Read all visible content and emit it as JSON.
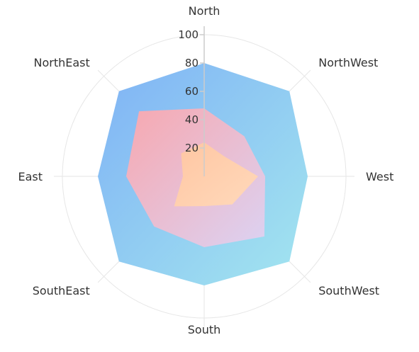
{
  "chart_data": {
    "type": "radar",
    "categories": [
      "North",
      "NorthWest",
      "West",
      "SouthWest",
      "South",
      "SouthEast",
      "East",
      "NorthEast"
    ],
    "rlim": [
      0,
      100
    ],
    "ticks": [
      "20",
      "40",
      "60",
      "80",
      "100"
    ],
    "grid": true,
    "series": [
      {
        "values": [
          80,
          85,
          73,
          85,
          77,
          85,
          75,
          85
        ],
        "colors": {
          "start": "#7fb2f5",
          "end": "#a3e6ef"
        }
      },
      {
        "values": [
          48,
          40,
          43,
          60,
          50,
          50,
          55,
          65
        ],
        "colors": {
          "start": "#f7a8b0",
          "end": "#dcd2f2"
        }
      },
      {
        "values": [
          24,
          20,
          38,
          28,
          21,
          30,
          15,
          23
        ],
        "colors": {
          "start": "#ffc6a2",
          "end": "#ffd9bb"
        }
      }
    ]
  }
}
